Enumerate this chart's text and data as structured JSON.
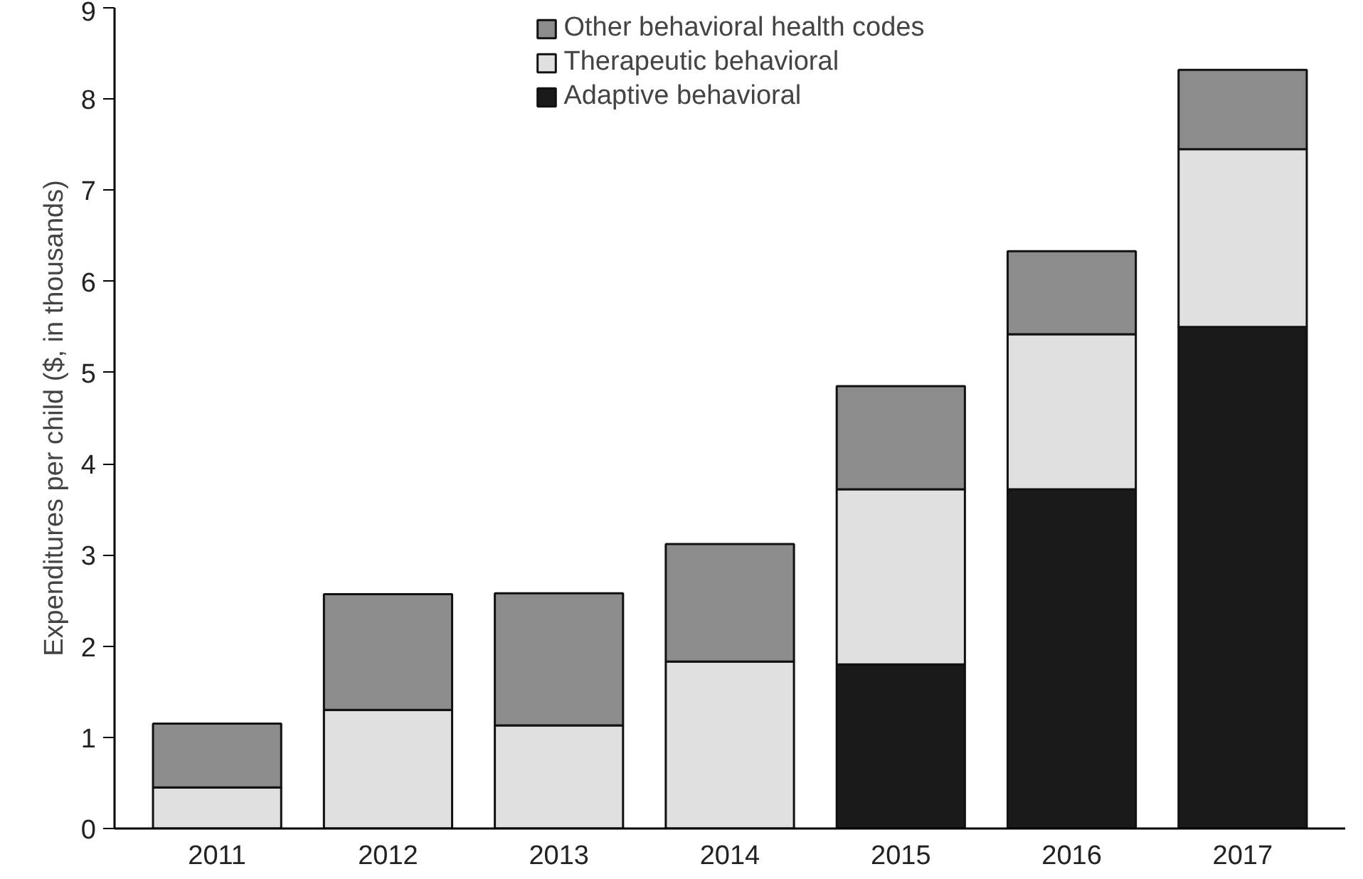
{
  "chart_data": {
    "type": "bar",
    "stacked": true,
    "ylabel": "Expenditures per child ($, in thousands)",
    "categories": [
      "2011",
      "2012",
      "2013",
      "2014",
      "2015",
      "2016",
      "2017"
    ],
    "series": [
      {
        "name": "Adaptive behavioral",
        "color": "#1a1a1a",
        "values": [
          0,
          0,
          0,
          0,
          1.8,
          3.72,
          5.5
        ]
      },
      {
        "name": "Therapeutic behavioral",
        "color": "#e0e0e0",
        "values": [
          0.45,
          1.3,
          1.13,
          1.83,
          1.92,
          1.7,
          1.95
        ]
      },
      {
        "name": "Other behavioral health codes",
        "color": "#8c8c8c",
        "values": [
          0.7,
          1.27,
          1.45,
          1.29,
          1.13,
          0.91,
          0.87
        ]
      }
    ],
    "ylim": [
      0,
      9
    ],
    "yticks": [
      0,
      1,
      2,
      3,
      4,
      5,
      6,
      7,
      8,
      9
    ],
    "grid": false,
    "legend": "top"
  }
}
